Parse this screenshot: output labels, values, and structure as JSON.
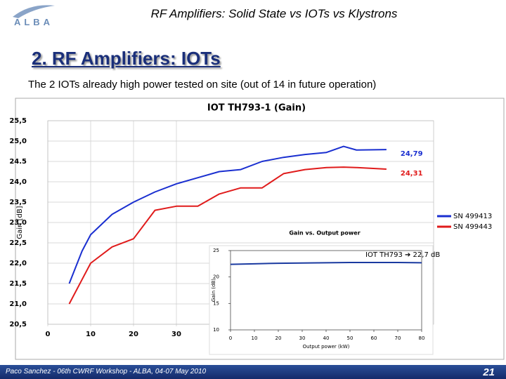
{
  "slide": {
    "header": "RF Amplifiers: Solid State vs IOTs vs Klystrons",
    "logo": "ALBA",
    "title": "2. RF Amplifiers: IOTs",
    "subtitle": "The 2 IOTs already high power tested on site (out of 14 in future operation)",
    "footer": "Paco Sanchez -  06th CWRF Workshop  - ALBA, 04-07 May 2010",
    "page": "21"
  },
  "chart_data": [
    {
      "type": "line",
      "title": "IOT TH793-1 (Gain)",
      "y_label": "Gain [dB]",
      "grid": true,
      "legend": "right",
      "x": [
        5,
        8,
        10,
        15,
        20,
        25,
        30,
        35,
        40,
        45,
        50,
        55,
        60,
        65,
        69,
        72,
        79
      ],
      "xlim": [
        0,
        90
      ],
      "xticks": [
        0,
        10,
        20,
        30
      ],
      "ylim": [
        20.5,
        25.5
      ],
      "yticks": [
        {
          "value": 20.5,
          "label": "20,5"
        },
        {
          "value": 21,
          "label": "21,0"
        },
        {
          "value": 21.5,
          "label": "21,5"
        },
        {
          "value": 22,
          "label": "22,0"
        },
        {
          "value": 22.5,
          "label": "22,5"
        },
        {
          "value": 23,
          "label": "23,0"
        },
        {
          "value": 23.5,
          "label": "23,5"
        },
        {
          "value": 24,
          "label": "24,0"
        },
        {
          "value": 24.5,
          "label": "24.5"
        },
        {
          "value": 25,
          "label": "25,0"
        },
        {
          "value": 25.5,
          "label": "25,5"
        }
      ],
      "series": [
        {
          "name": "SN 499413",
          "color": "#1a2fd0",
          "values": [
            21.5,
            22.3,
            22.7,
            23.2,
            23.5,
            23.75,
            23.95,
            24.1,
            24.25,
            24.3,
            24.5,
            24.6,
            24.67,
            24.72,
            24.87,
            24.78,
            24.79
          ],
          "value_labels": [
            null,
            null,
            null,
            null,
            null,
            null,
            null,
            null,
            null,
            null,
            null,
            null,
            null,
            null,
            null,
            null,
            "24,79"
          ]
        },
        {
          "name": "SN 499443",
          "color": "#e01b1b",
          "values": [
            21.0,
            21.6,
            22.0,
            22.4,
            22.6,
            23.3,
            23.4,
            23.4,
            23.7,
            23.85,
            23.85,
            24.2,
            24.3,
            24.35,
            24.36,
            24.35,
            24.31
          ],
          "value_labels": [
            null,
            null,
            null,
            null,
            null,
            null,
            null,
            null,
            null,
            null,
            null,
            null,
            null,
            null,
            null,
            null,
            "24,31"
          ]
        }
      ]
    },
    {
      "type": "line",
      "title": "Gain vs. Output power",
      "x_label": "Output power (kW)",
      "y_label": "Gain (dB)",
      "grid": false,
      "annotation": "IOT TH793 ➔ 22,7 dB",
      "x": [
        0,
        10,
        20,
        30,
        40,
        50,
        60,
        70,
        80
      ],
      "xlim": [
        0,
        80
      ],
      "xticks": [
        0,
        10,
        20,
        30,
        40,
        50,
        60,
        70,
        80
      ],
      "ylim": [
        10,
        25
      ],
      "yticks": [
        10,
        15,
        20,
        25
      ],
      "series": [
        {
          "color": "#1a3aa0",
          "values": [
            22.4,
            22.5,
            22.6,
            22.65,
            22.7,
            22.75,
            22.75,
            22.75,
            22.7
          ]
        }
      ]
    }
  ]
}
